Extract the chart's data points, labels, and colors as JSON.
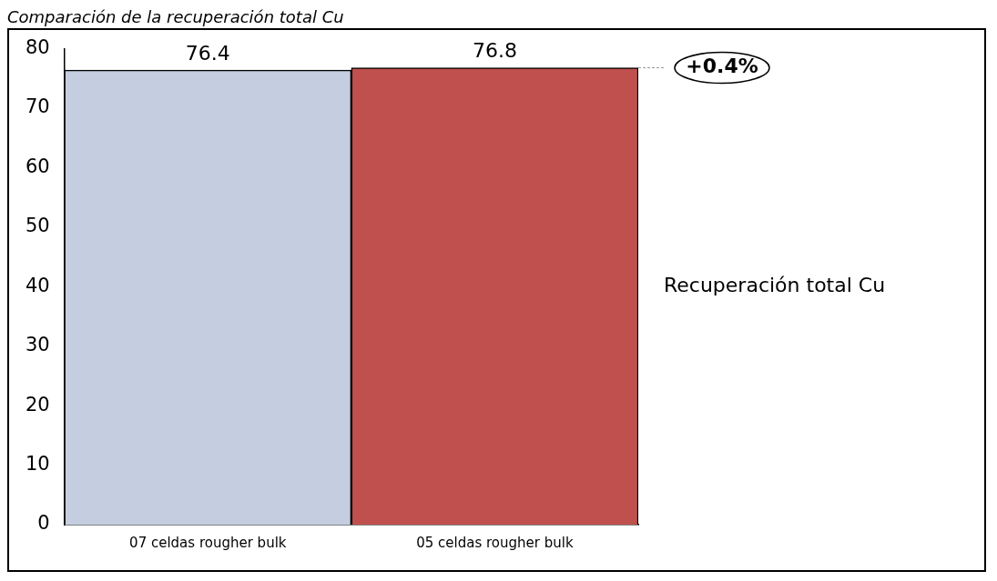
{
  "chart_data": {
    "type": "bar",
    "title": "Comparación de la recuperación total Cu",
    "categories": [
      "07 celdas rougher bulk",
      "05 celdas rougher bulk"
    ],
    "values": [
      76.4,
      76.8
    ],
    "colors": [
      "#c4cee0",
      "#c0504d"
    ],
    "ylim": [
      0,
      80
    ],
    "yticks": [
      0,
      10,
      20,
      30,
      40,
      50,
      60,
      70,
      80
    ],
    "grid": false,
    "data_labels": true,
    "annotations": [
      "+0.4%",
      "Recuperación total Cu"
    ]
  }
}
